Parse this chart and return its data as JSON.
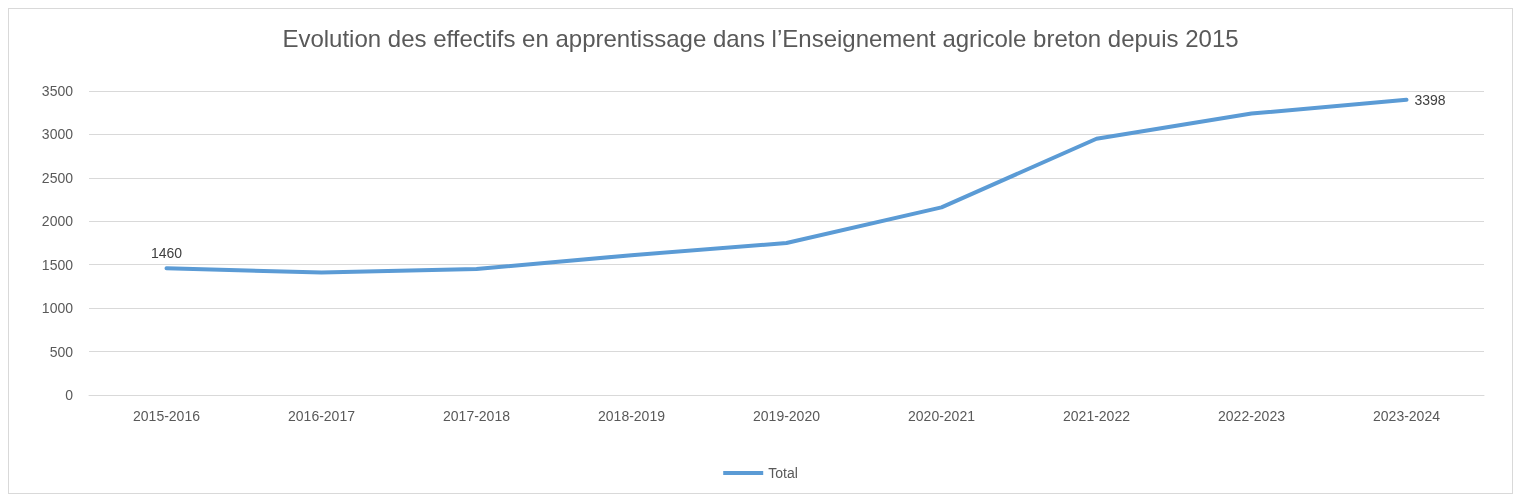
{
  "chart_data": {
    "type": "line",
    "title": "Evolution des effectifs en apprentissage dans l’Enseignement agricole breton depuis 2015",
    "categories": [
      "2015-2016",
      "2016-2017",
      "2017-2018",
      "2018-2019",
      "2019-2020",
      "2020-2021",
      "2021-2022",
      "2022-2023",
      "2023-2024"
    ],
    "series": [
      {
        "name": "Total",
        "color": "#5b9bd5",
        "values": [
          1460,
          1410,
          1450,
          1610,
          1750,
          2160,
          2950,
          3240,
          3398
        ],
        "value_labels": [
          "1460",
          null,
          null,
          null,
          null,
          null,
          null,
          null,
          "3398"
        ]
      }
    ],
    "ylim": [
      0,
      3500
    ],
    "yticks": [
      0,
      500,
      1000,
      1500,
      2000,
      2500,
      3000,
      3500
    ],
    "grid": "y",
    "legend": "bottom",
    "marker": "none",
    "line_style": "solid"
  }
}
